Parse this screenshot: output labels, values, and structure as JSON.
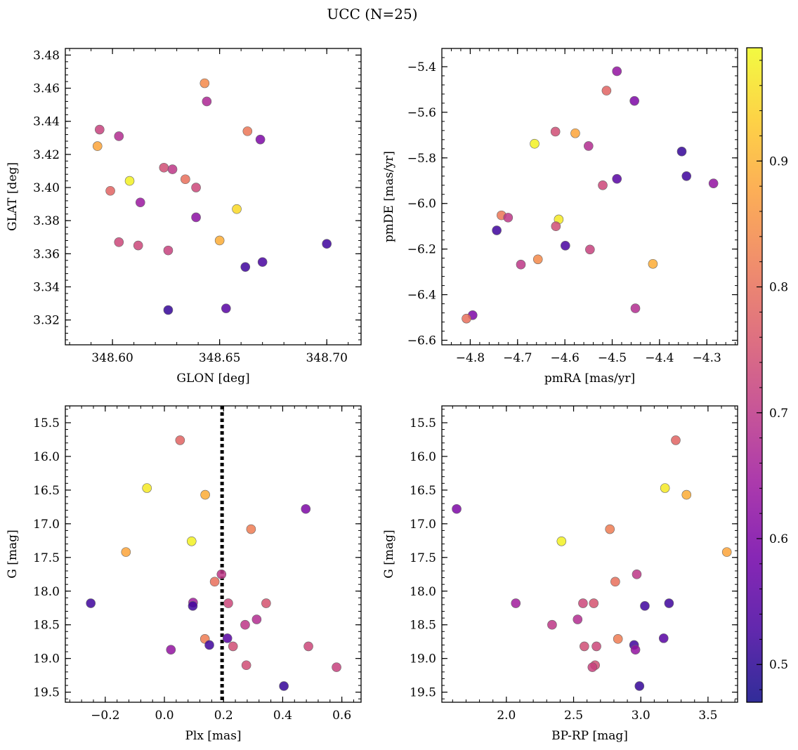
{
  "figure": {
    "title": "UCC (N=25)"
  },
  "colorbar": {
    "range": [
      0.47,
      0.99
    ],
    "ticks": [
      0.5,
      0.6,
      0.7,
      0.8,
      0.9
    ],
    "tick_labels": [
      "0.5",
      "0.6",
      "0.7",
      "0.8",
      "0.9"
    ],
    "colormap": [
      "#0d0887",
      "#46039f",
      "#7201a8",
      "#9c179e",
      "#bd3786",
      "#d8576b",
      "#ed7953",
      "#fb9f3a",
      "#fdca26",
      "#f0f921"
    ]
  },
  "chart_data": [
    {
      "type": "scatter",
      "xlabel": "GLON [deg]",
      "ylabel": "GLAT [deg]",
      "xlim": [
        348.578,
        348.716
      ],
      "ylim": [
        3.305,
        3.484
      ],
      "y_inverted": false,
      "x_ticks": [
        348.6,
        348.65,
        348.7
      ],
      "x_tick_labels": [
        "348.60",
        "348.65",
        "348.70"
      ],
      "y_ticks": [
        3.32,
        3.34,
        3.36,
        3.38,
        3.4,
        3.42,
        3.44,
        3.46,
        3.48
      ],
      "y_tick_labels": [
        "3.32",
        "3.34",
        "3.36",
        "3.38",
        "3.40",
        "3.42",
        "3.44",
        "3.46",
        "3.48"
      ],
      "points": [
        {
          "x": 348.643,
          "y": 3.463,
          "c": 0.84
        },
        {
          "x": 348.644,
          "y": 3.452,
          "c": 0.67
        },
        {
          "x": 348.594,
          "y": 3.435,
          "c": 0.72
        },
        {
          "x": 348.603,
          "y": 3.431,
          "c": 0.68
        },
        {
          "x": 348.663,
          "y": 3.434,
          "c": 0.81
        },
        {
          "x": 348.669,
          "y": 3.429,
          "c": 0.6
        },
        {
          "x": 348.593,
          "y": 3.425,
          "c": 0.88
        },
        {
          "x": 348.624,
          "y": 3.412,
          "c": 0.74
        },
        {
          "x": 348.628,
          "y": 3.411,
          "c": 0.7
        },
        {
          "x": 348.608,
          "y": 3.404,
          "c": 0.98
        },
        {
          "x": 348.634,
          "y": 3.405,
          "c": 0.8
        },
        {
          "x": 348.599,
          "y": 3.398,
          "c": 0.78
        },
        {
          "x": 348.639,
          "y": 3.4,
          "c": 0.73
        },
        {
          "x": 348.613,
          "y": 3.391,
          "c": 0.64
        },
        {
          "x": 348.658,
          "y": 3.387,
          "c": 0.95
        },
        {
          "x": 348.639,
          "y": 3.382,
          "c": 0.62
        },
        {
          "x": 348.603,
          "y": 3.367,
          "c": 0.73
        },
        {
          "x": 348.612,
          "y": 3.365,
          "c": 0.73
        },
        {
          "x": 348.65,
          "y": 3.368,
          "c": 0.89
        },
        {
          "x": 348.626,
          "y": 3.362,
          "c": 0.72
        },
        {
          "x": 348.7,
          "y": 3.366,
          "c": 0.52
        },
        {
          "x": 348.67,
          "y": 3.355,
          "c": 0.53
        },
        {
          "x": 348.662,
          "y": 3.352,
          "c": 0.52
        },
        {
          "x": 348.626,
          "y": 3.326,
          "c": 0.51
        },
        {
          "x": 348.653,
          "y": 3.327,
          "c": 0.55
        }
      ]
    },
    {
      "type": "scatter",
      "xlabel": "pmRA [mas/yr]",
      "ylabel": "pmDE [mas/yr]",
      "xlim": [
        -4.86,
        -4.235
      ],
      "ylim": [
        -6.62,
        -5.32
      ],
      "y_inverted": false,
      "x_ticks": [
        -4.8,
        -4.7,
        -4.6,
        -4.5,
        -4.4,
        -4.3
      ],
      "x_tick_labels": [
        "−4.8",
        "−4.7",
        "−4.6",
        "−4.5",
        "−4.4",
        "−4.3"
      ],
      "y_ticks": [
        -6.6,
        -6.4,
        -6.2,
        -6.0,
        -5.8,
        -5.6,
        -5.4
      ],
      "y_tick_labels": [
        "−6.6",
        "−6.4",
        "−6.2",
        "−6.0",
        "−5.8",
        "−5.6",
        "−5.4"
      ],
      "points": [
        {
          "x": -4.49,
          "y": -5.42,
          "c": 0.63
        },
        {
          "x": -4.512,
          "y": -5.505,
          "c": 0.78
        },
        {
          "x": -4.453,
          "y": -5.55,
          "c": 0.6
        },
        {
          "x": -4.62,
          "y": -5.685,
          "c": 0.74
        },
        {
          "x": -4.578,
          "y": -5.692,
          "c": 0.88
        },
        {
          "x": -4.664,
          "y": -5.738,
          "c": 0.98
        },
        {
          "x": -4.55,
          "y": -5.748,
          "c": 0.68
        },
        {
          "x": -4.353,
          "y": -5.772,
          "c": 0.51
        },
        {
          "x": -4.343,
          "y": -5.88,
          "c": 0.52
        },
        {
          "x": -4.49,
          "y": -5.892,
          "c": 0.55
        },
        {
          "x": -4.52,
          "y": -5.92,
          "c": 0.73
        },
        {
          "x": -4.286,
          "y": -5.912,
          "c": 0.63
        },
        {
          "x": -4.734,
          "y": -6.052,
          "c": 0.81
        },
        {
          "x": -4.72,
          "y": -6.062,
          "c": 0.7
        },
        {
          "x": -4.613,
          "y": -6.07,
          "c": 0.97
        },
        {
          "x": -4.619,
          "y": -6.1,
          "c": 0.74
        },
        {
          "x": -4.744,
          "y": -6.118,
          "c": 0.52
        },
        {
          "x": -4.599,
          "y": -6.185,
          "c": 0.53
        },
        {
          "x": -4.547,
          "y": -6.202,
          "c": 0.72
        },
        {
          "x": -4.657,
          "y": -6.245,
          "c": 0.84
        },
        {
          "x": -4.693,
          "y": -6.268,
          "c": 0.7
        },
        {
          "x": -4.414,
          "y": -6.265,
          "c": 0.89
        },
        {
          "x": -4.451,
          "y": -6.46,
          "c": 0.68
        },
        {
          "x": -4.795,
          "y": -6.49,
          "c": 0.6
        },
        {
          "x": -4.808,
          "y": -6.505,
          "c": 0.8
        }
      ]
    },
    {
      "type": "scatter",
      "xlabel": "Plx [mas]",
      "ylabel": "G [mag]",
      "xlim": [
        -0.335,
        0.665
      ],
      "ylim": [
        15.25,
        19.65
      ],
      "y_inverted": true,
      "x_ticks": [
        -0.2,
        0.0,
        0.2,
        0.4,
        0.6
      ],
      "x_tick_labels": [
        "−0.2",
        "0.0",
        "0.2",
        "0.4",
        "0.6"
      ],
      "y_ticks": [
        15.5,
        16.0,
        16.5,
        17.0,
        17.5,
        18.0,
        18.5,
        19.0,
        19.5
      ],
      "y_tick_labels": [
        "15.5",
        "16.0",
        "16.5",
        "17.0",
        "17.5",
        "18.0",
        "18.5",
        "19.0",
        "19.5"
      ],
      "vline": 0.195,
      "points": [
        {
          "x": 0.053,
          "y": 15.76,
          "c": 0.78
        },
        {
          "x": -0.059,
          "y": 16.47,
          "c": 0.97
        },
        {
          "x": 0.138,
          "y": 16.57,
          "c": 0.89
        },
        {
          "x": 0.478,
          "y": 16.78,
          "c": 0.6
        },
        {
          "x": 0.293,
          "y": 17.08,
          "c": 0.82
        },
        {
          "x": 0.092,
          "y": 17.26,
          "c": 0.98
        },
        {
          "x": -0.13,
          "y": 17.42,
          "c": 0.88
        },
        {
          "x": 0.193,
          "y": 17.75,
          "c": 0.7
        },
        {
          "x": 0.17,
          "y": 17.86,
          "c": 0.8
        },
        {
          "x": -0.249,
          "y": 18.18,
          "c": 0.52
        },
        {
          "x": 0.097,
          "y": 18.17,
          "c": 0.65
        },
        {
          "x": 0.096,
          "y": 18.22,
          "c": 0.52
        },
        {
          "x": 0.216,
          "y": 18.18,
          "c": 0.73
        },
        {
          "x": 0.344,
          "y": 18.18,
          "c": 0.75
        },
        {
          "x": 0.312,
          "y": 18.42,
          "c": 0.68
        },
        {
          "x": 0.273,
          "y": 18.5,
          "c": 0.7
        },
        {
          "x": 0.137,
          "y": 18.71,
          "c": 0.82
        },
        {
          "x": 0.213,
          "y": 18.7,
          "c": 0.55
        },
        {
          "x": 0.152,
          "y": 18.8,
          "c": 0.52
        },
        {
          "x": 0.232,
          "y": 18.82,
          "c": 0.74
        },
        {
          "x": 0.487,
          "y": 18.82,
          "c": 0.73
        },
        {
          "x": 0.022,
          "y": 18.87,
          "c": 0.63
        },
        {
          "x": 0.277,
          "y": 19.1,
          "c": 0.74
        },
        {
          "x": 0.582,
          "y": 19.13,
          "c": 0.72
        },
        {
          "x": 0.404,
          "y": 19.41,
          "c": 0.51
        }
      ]
    },
    {
      "type": "scatter",
      "xlabel": "BP-RP [mag]",
      "ylabel": "G [mag]",
      "xlim": [
        1.52,
        3.72
      ],
      "ylim": [
        15.25,
        19.65
      ],
      "y_inverted": true,
      "x_ticks": [
        2.0,
        2.5,
        3.0,
        3.5
      ],
      "x_tick_labels": [
        "2.0",
        "2.5",
        "3.0",
        "3.5"
      ],
      "y_ticks": [
        15.5,
        16.0,
        16.5,
        17.0,
        17.5,
        18.0,
        18.5,
        19.0,
        19.5
      ],
      "y_tick_labels": [
        "15.5",
        "16.0",
        "16.5",
        "17.0",
        "17.5",
        "18.0",
        "18.5",
        "19.0",
        "19.5"
      ],
      "points": [
        {
          "x": 3.26,
          "y": 15.76,
          "c": 0.78
        },
        {
          "x": 3.18,
          "y": 16.47,
          "c": 0.97
        },
        {
          "x": 3.34,
          "y": 16.57,
          "c": 0.89
        },
        {
          "x": 1.63,
          "y": 16.78,
          "c": 0.6
        },
        {
          "x": 2.77,
          "y": 17.08,
          "c": 0.82
        },
        {
          "x": 2.41,
          "y": 17.26,
          "c": 0.98
        },
        {
          "x": 3.64,
          "y": 17.42,
          "c": 0.88
        },
        {
          "x": 2.97,
          "y": 17.75,
          "c": 0.7
        },
        {
          "x": 2.81,
          "y": 17.86,
          "c": 0.8
        },
        {
          "x": 2.07,
          "y": 18.18,
          "c": 0.65
        },
        {
          "x": 2.57,
          "y": 18.18,
          "c": 0.73
        },
        {
          "x": 2.65,
          "y": 18.18,
          "c": 0.75
        },
        {
          "x": 3.21,
          "y": 18.18,
          "c": 0.52
        },
        {
          "x": 3.03,
          "y": 18.22,
          "c": 0.52
        },
        {
          "x": 2.53,
          "y": 18.42,
          "c": 0.68
        },
        {
          "x": 2.34,
          "y": 18.5,
          "c": 0.7
        },
        {
          "x": 3.17,
          "y": 18.7,
          "c": 0.55
        },
        {
          "x": 2.83,
          "y": 18.71,
          "c": 0.82
        },
        {
          "x": 2.95,
          "y": 18.8,
          "c": 0.52
        },
        {
          "x": 2.58,
          "y": 18.82,
          "c": 0.74
        },
        {
          "x": 2.67,
          "y": 18.82,
          "c": 0.73
        },
        {
          "x": 2.96,
          "y": 18.87,
          "c": 0.63
        },
        {
          "x": 2.66,
          "y": 19.1,
          "c": 0.74
        },
        {
          "x": 2.64,
          "y": 19.13,
          "c": 0.72
        },
        {
          "x": 2.99,
          "y": 19.41,
          "c": 0.51
        }
      ]
    }
  ]
}
